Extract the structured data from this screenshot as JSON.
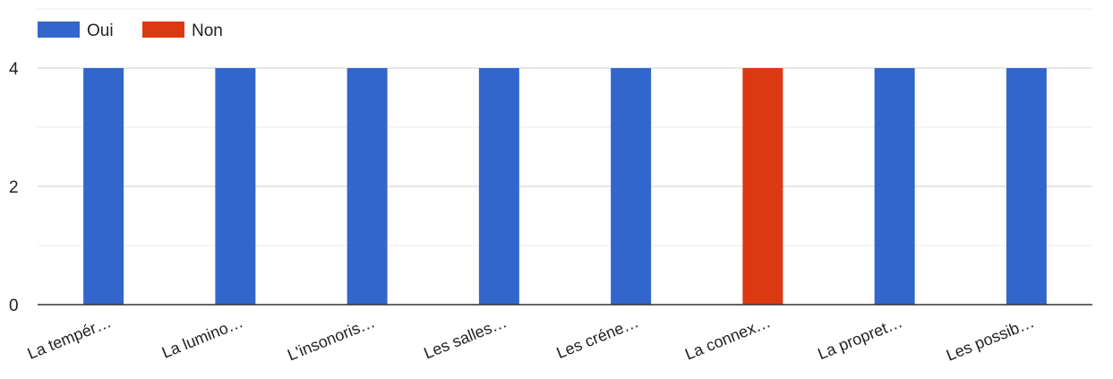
{
  "chart_data": {
    "type": "bar",
    "categories": [
      "La tempér…",
      "La lumino…",
      "L'insonoris…",
      "Les salles…",
      "Les créne…",
      "La connex…",
      "La propret…",
      "Les possib…"
    ],
    "series": [
      {
        "name": "Oui",
        "values": [
          4,
          4,
          4,
          4,
          4,
          0,
          4,
          4
        ],
        "color": "#3366cc"
      },
      {
        "name": "Non",
        "values": [
          0,
          0,
          0,
          0,
          0,
          4,
          0,
          0
        ],
        "color": "#dc3912"
      }
    ],
    "y_ticks": [
      "0",
      "2",
      "4"
    ],
    "ylim": [
      0,
      5
    ],
    "grid": true,
    "legend": "top-left",
    "stacked": true
  }
}
